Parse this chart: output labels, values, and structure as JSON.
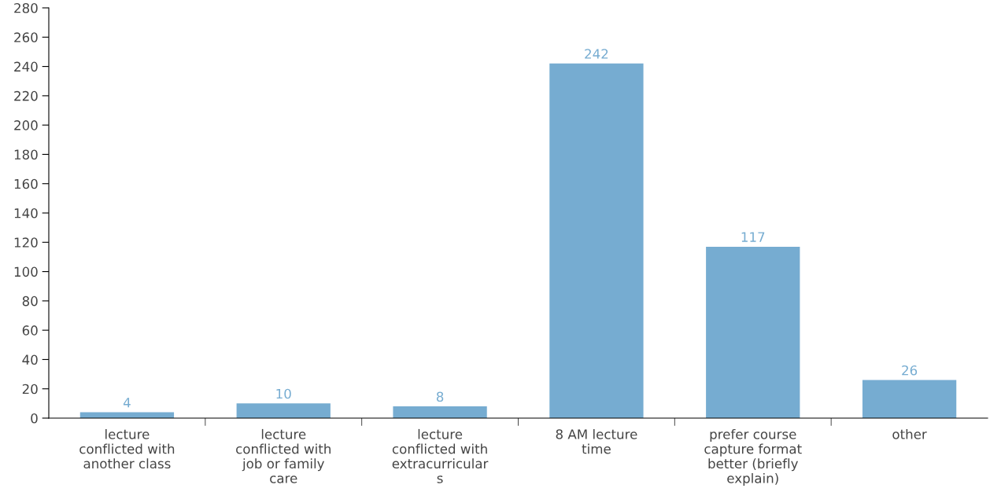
{
  "chart_data": {
    "type": "bar",
    "categories": [
      "lecture\nconflicted with\nanother class",
      "lecture\nconflicted with\njob or family\ncare",
      "lecture\nconflicted with\nextracurricular\ns",
      "8 AM lecture\ntime",
      "prefer course\ncapture format\nbetter (briefly\nexplain)",
      "other"
    ],
    "values": [
      4,
      10,
      8,
      242,
      117,
      26
    ],
    "color": "#76acd1",
    "ylim": [
      0,
      280
    ],
    "yticks": [
      0,
      20,
      40,
      60,
      80,
      100,
      120,
      140,
      160,
      180,
      200,
      220,
      240,
      260,
      280
    ],
    "data_labels": true,
    "grid": false,
    "legend": false
  }
}
